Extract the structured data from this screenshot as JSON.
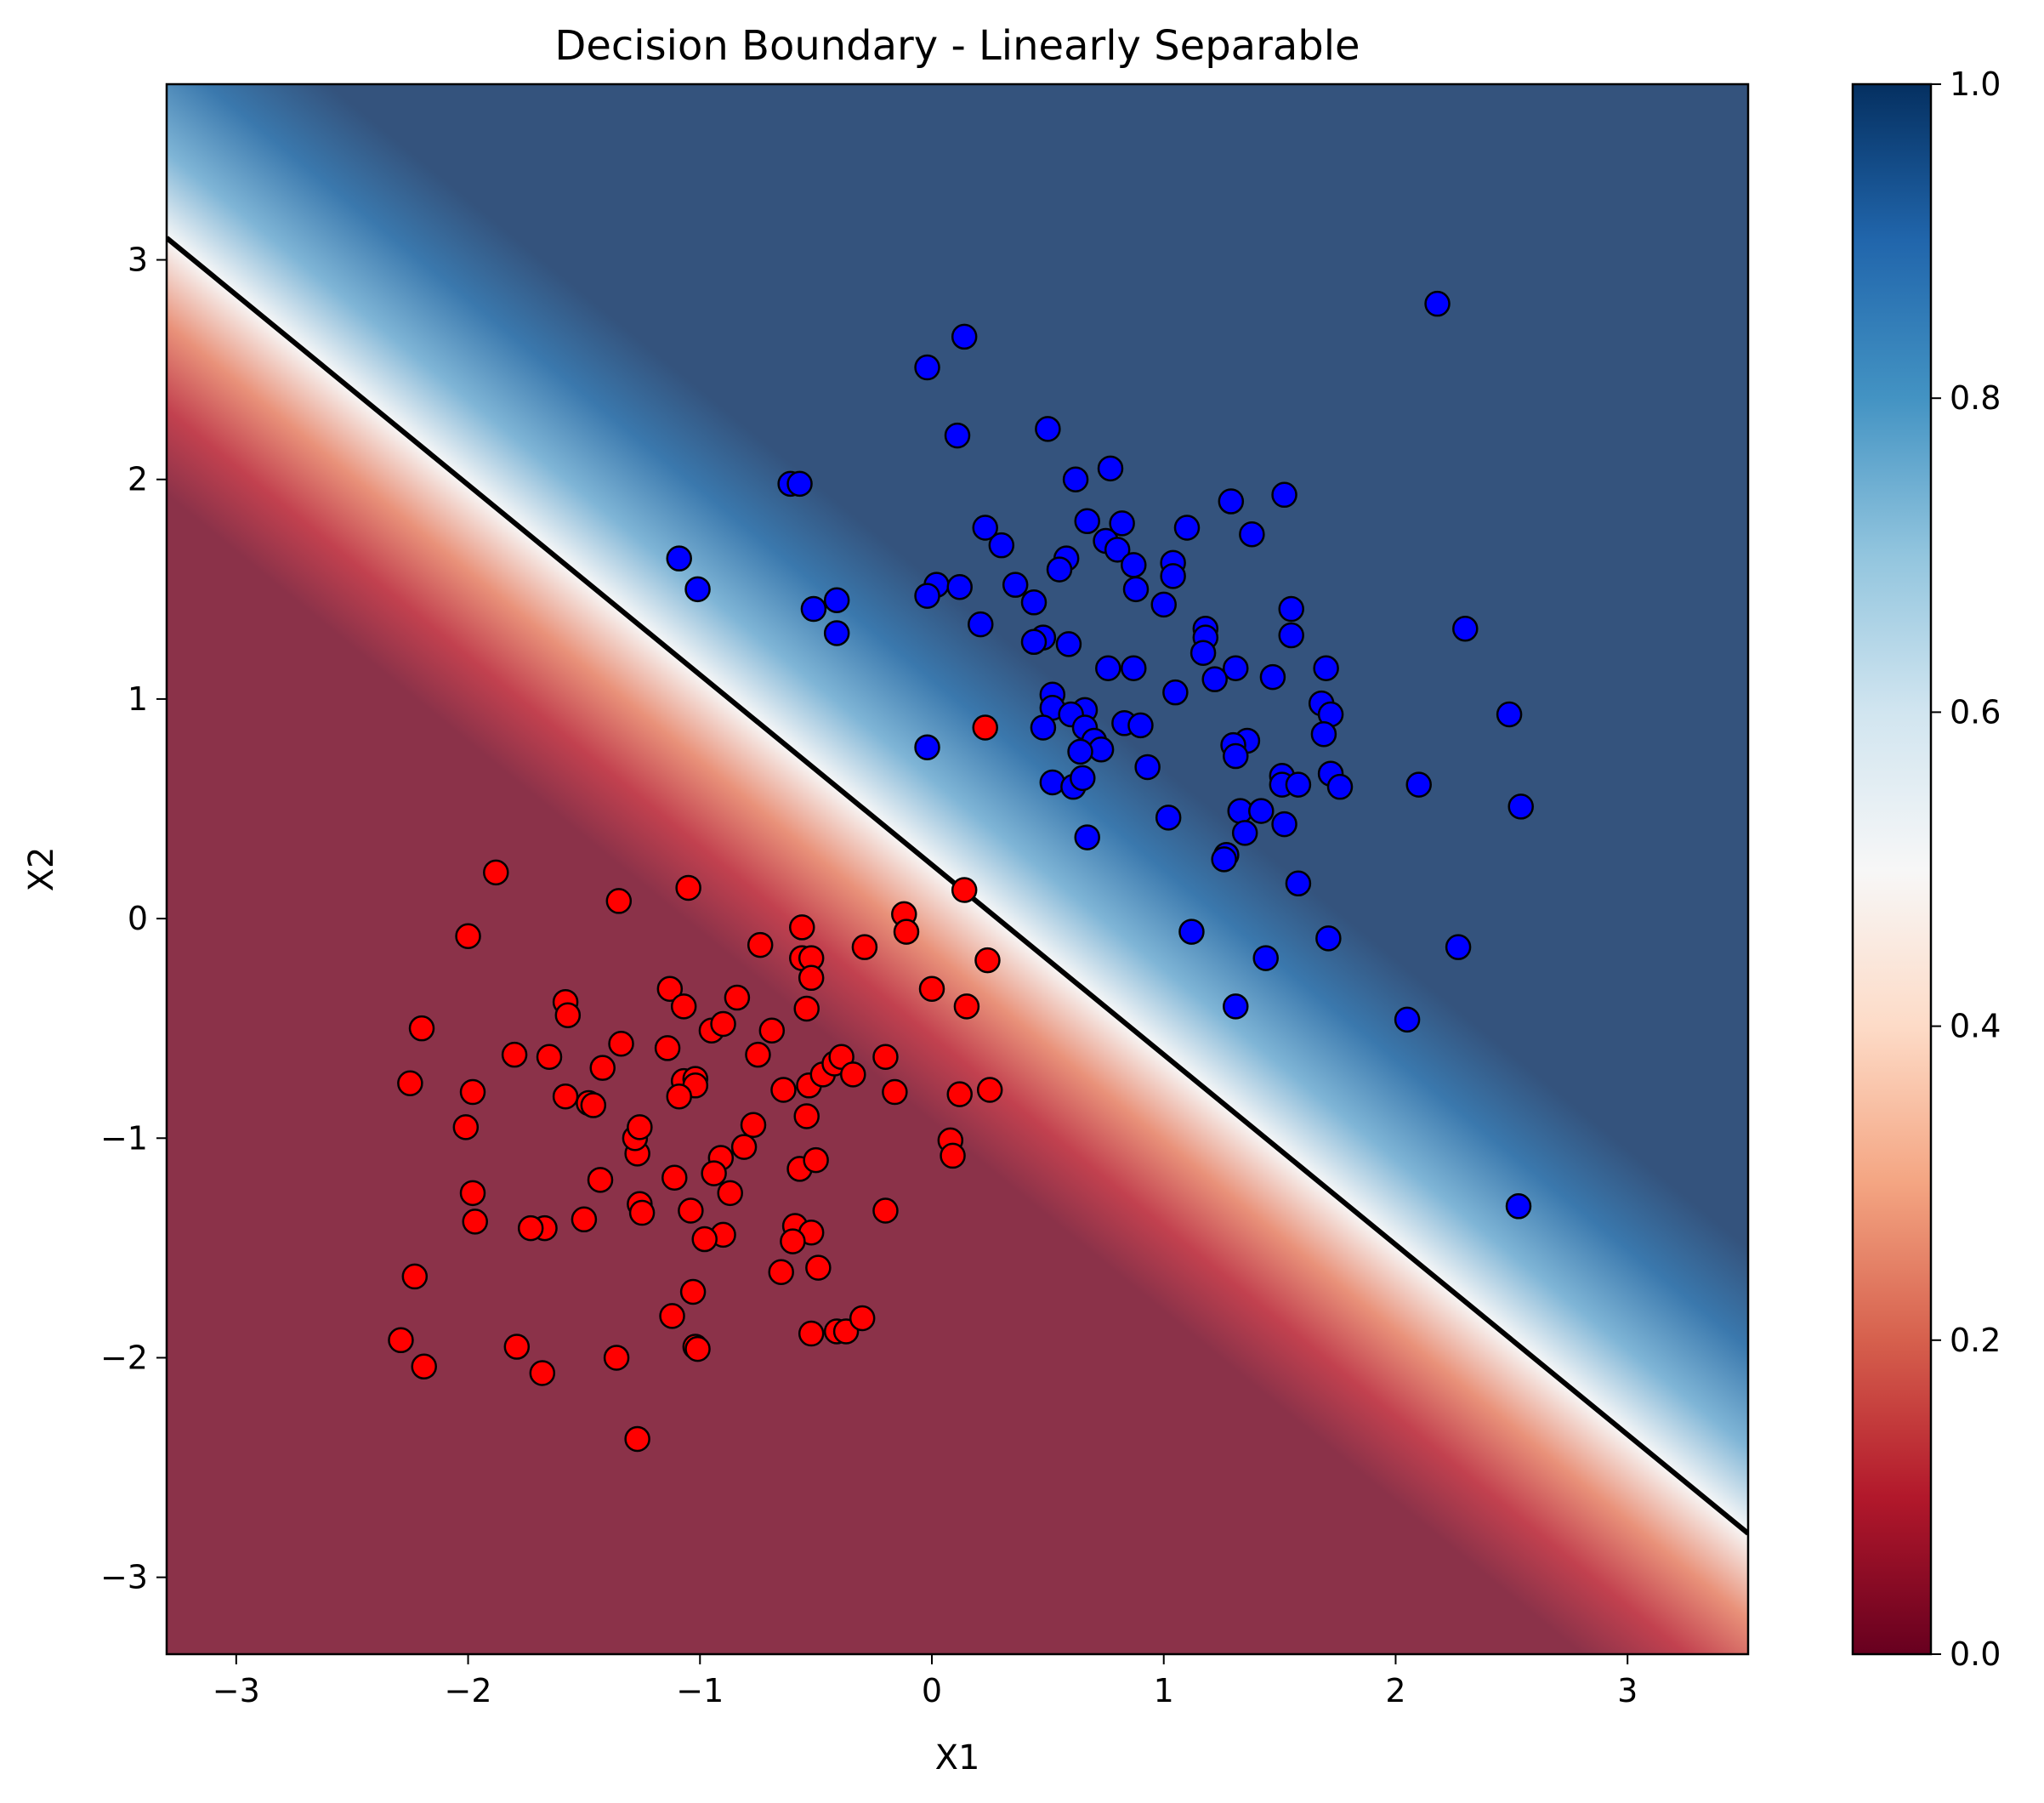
{
  "chart_data": {
    "type": "scatter",
    "title": "Decision Boundary - Linearly Separable",
    "xlabel": "X1",
    "ylabel": "X2",
    "xlim": [
      -3.3,
      3.52
    ],
    "ylim": [
      -3.35,
      3.8
    ],
    "x_ticks": [
      -3,
      -2,
      -1,
      0,
      1,
      2,
      3
    ],
    "y_ticks": [
      -3,
      -2,
      -1,
      0,
      1,
      2,
      3
    ],
    "x_tick_labels": [
      "−3",
      "−2",
      "−1",
      "0",
      "1",
      "2",
      "3"
    ],
    "y_tick_labels": [
      "−3",
      "−2",
      "−1",
      "0",
      "1",
      "2",
      "3"
    ],
    "grid": false,
    "background": {
      "kind": "probability contour",
      "colormap": "RdBu",
      "low_color": "#67001f",
      "mid_color": "#f7f7f7",
      "high_color": "#053061"
    },
    "decision_boundary": {
      "color": "#000000",
      "points": [
        [
          -3.3,
          3.1
        ],
        [
          3.52,
          -2.8
        ]
      ]
    },
    "colorbar": {
      "range": [
        0.0,
        1.0
      ],
      "ticks": [
        0.0,
        0.2,
        0.4,
        0.6,
        0.8,
        1.0
      ],
      "tick_labels": [
        "0.0",
        "0.2",
        "0.4",
        "0.6",
        "0.8",
        "1.0"
      ]
    },
    "series": [
      {
        "color": "#ff0000",
        "points": [
          [
            -1.88,
            0.21
          ],
          [
            -1.35,
            0.08
          ],
          [
            -1.05,
            0.14
          ],
          [
            -2.0,
            -0.08
          ],
          [
            -2.2,
            -0.5
          ],
          [
            -2.25,
            -0.75
          ],
          [
            -1.98,
            -0.79
          ],
          [
            -1.8,
            -0.62
          ],
          [
            -1.65,
            -0.63
          ],
          [
            -1.58,
            -0.38
          ],
          [
            -1.57,
            -0.44
          ],
          [
            -1.58,
            -0.81
          ],
          [
            -1.48,
            -0.84
          ],
          [
            -1.46,
            -0.85
          ],
          [
            -1.42,
            -0.68
          ],
          [
            -1.34,
            -0.57
          ],
          [
            -1.14,
            -0.59
          ],
          [
            -1.13,
            -0.32
          ],
          [
            -1.07,
            -0.4
          ],
          [
            -1.07,
            -0.74
          ],
          [
            -1.02,
            -0.73
          ],
          [
            -1.02,
            -0.76
          ],
          [
            -1.09,
            -0.81
          ],
          [
            -0.95,
            -0.51
          ],
          [
            -0.9,
            -0.48
          ],
          [
            -0.84,
            -0.36
          ],
          [
            -0.77,
            -0.94
          ],
          [
            -0.75,
            -0.62
          ],
          [
            -0.74,
            -0.12
          ],
          [
            -0.69,
            -0.51
          ],
          [
            -0.64,
            -0.78
          ],
          [
            -0.56,
            -0.04
          ],
          [
            -0.56,
            -0.18
          ],
          [
            -0.52,
            -0.18
          ],
          [
            -0.52,
            -0.27
          ],
          [
            -0.54,
            -0.41
          ],
          [
            -0.53,
            -0.76
          ],
          [
            -0.47,
            -0.71
          ],
          [
            -0.42,
            -0.66
          ],
          [
            -0.39,
            -0.63
          ],
          [
            -0.34,
            -0.71
          ],
          [
            -0.29,
            -0.13
          ],
          [
            -0.2,
            -0.63
          ],
          [
            -0.16,
            -0.79
          ],
          [
            -0.12,
            0.02
          ],
          [
            -0.11,
            -0.06
          ],
          [
            0.0,
            -0.32
          ],
          [
            0.15,
            -0.4
          ],
          [
            0.14,
            0.13
          ],
          [
            0.24,
            -0.19
          ],
          [
            0.25,
            -0.78
          ],
          [
            0.12,
            -0.8
          ],
          [
            0.23,
            0.87
          ],
          [
            0.08,
            -1.01
          ],
          [
            0.09,
            -1.08
          ],
          [
            -0.54,
            -0.9
          ],
          [
            -0.57,
            -1.14
          ],
          [
            -0.5,
            -1.1
          ],
          [
            -0.59,
            -1.4
          ],
          [
            -0.52,
            -1.43
          ],
          [
            -0.6,
            -1.47
          ],
          [
            -0.65,
            -1.61
          ],
          [
            -0.49,
            -1.59
          ],
          [
            -0.52,
            -1.89
          ],
          [
            -0.41,
            -1.88
          ],
          [
            -0.37,
            -1.88
          ],
          [
            -0.3,
            -1.82
          ],
          [
            -0.2,
            -1.33
          ],
          [
            -0.81,
            -1.04
          ],
          [
            -0.87,
            -1.25
          ],
          [
            -0.91,
            -1.09
          ],
          [
            -0.94,
            -1.16
          ],
          [
            -0.9,
            -1.44
          ],
          [
            -0.98,
            -1.46
          ],
          [
            -1.04,
            -1.33
          ],
          [
            -1.03,
            -1.7
          ],
          [
            -1.02,
            -1.95
          ],
          [
            -1.01,
            -1.96
          ],
          [
            -1.12,
            -1.81
          ],
          [
            -1.11,
            -1.18
          ],
          [
            -1.26,
            -1.3
          ],
          [
            -1.25,
            -1.34
          ],
          [
            -1.27,
            -1.07
          ],
          [
            -1.28,
            -1.0
          ],
          [
            -1.26,
            -0.95
          ],
          [
            -1.43,
            -1.19
          ],
          [
            -1.5,
            -1.37
          ],
          [
            -1.67,
            -1.41
          ],
          [
            -1.73,
            -1.41
          ],
          [
            -1.98,
            -1.25
          ],
          [
            -1.97,
            -1.38
          ],
          [
            -2.01,
            -0.95
          ],
          [
            -1.79,
            -1.95
          ],
          [
            -1.68,
            -2.07
          ],
          [
            -1.36,
            -2.0
          ],
          [
            -2.29,
            -1.92
          ],
          [
            -2.19,
            -2.04
          ],
          [
            -2.23,
            -1.63
          ],
          [
            -1.27,
            -2.37
          ]
        ]
      },
      {
        "color": "#0000ff",
        "points": [
          [
            2.18,
            2.8
          ],
          [
            0.14,
            2.65
          ],
          [
            -0.02,
            2.51
          ],
          [
            0.5,
            2.23
          ],
          [
            0.11,
            2.2
          ],
          [
            -0.61,
            1.98
          ],
          [
            -0.57,
            1.98
          ],
          [
            0.62,
            2.0
          ],
          [
            0.77,
            2.05
          ],
          [
            1.52,
            1.93
          ],
          [
            1.29,
            1.9
          ],
          [
            0.23,
            1.78
          ],
          [
            0.67,
            1.81
          ],
          [
            0.82,
            1.8
          ],
          [
            1.1,
            1.78
          ],
          [
            1.38,
            1.75
          ],
          [
            0.3,
            1.7
          ],
          [
            0.75,
            1.72
          ],
          [
            0.8,
            1.68
          ],
          [
            -1.09,
            1.64
          ],
          [
            -1.01,
            1.5
          ],
          [
            0.58,
            1.64
          ],
          [
            0.87,
            1.61
          ],
          [
            1.04,
            1.62
          ],
          [
            0.55,
            1.59
          ],
          [
            1.04,
            1.56
          ],
          [
            0.02,
            1.52
          ],
          [
            0.12,
            1.51
          ],
          [
            0.36,
            1.52
          ],
          [
            0.88,
            1.5
          ],
          [
            -0.02,
            1.47
          ],
          [
            -0.41,
            1.45
          ],
          [
            0.44,
            1.44
          ],
          [
            1.0,
            1.43
          ],
          [
            -0.51,
            1.41
          ],
          [
            1.55,
            1.41
          ],
          [
            0.21,
            1.34
          ],
          [
            1.18,
            1.32
          ],
          [
            2.3,
            1.32
          ],
          [
            -0.41,
            1.3
          ],
          [
            1.18,
            1.28
          ],
          [
            1.55,
            1.29
          ],
          [
            0.48,
            1.28
          ],
          [
            0.44,
            1.26
          ],
          [
            0.59,
            1.25
          ],
          [
            1.17,
            1.21
          ],
          [
            0.76,
            1.14
          ],
          [
            0.87,
            1.14
          ],
          [
            1.31,
            1.14
          ],
          [
            1.7,
            1.14
          ],
          [
            1.47,
            1.1
          ],
          [
            1.22,
            1.09
          ],
          [
            0.52,
            1.02
          ],
          [
            1.05,
            1.03
          ],
          [
            1.68,
            0.98
          ],
          [
            0.52,
            0.96
          ],
          [
            0.66,
            0.95
          ],
          [
            0.6,
            0.93
          ],
          [
            1.72,
            0.93
          ],
          [
            2.49,
            0.93
          ],
          [
            0.83,
            0.89
          ],
          [
            0.66,
            0.87
          ],
          [
            0.9,
            0.88
          ],
          [
            0.48,
            0.87
          ],
          [
            1.69,
            0.84
          ],
          [
            0.7,
            0.81
          ],
          [
            1.36,
            0.81
          ],
          [
            1.3,
            0.79
          ],
          [
            -0.02,
            0.78
          ],
          [
            0.73,
            0.77
          ],
          [
            0.64,
            0.76
          ],
          [
            1.31,
            0.74
          ],
          [
            0.93,
            0.69
          ],
          [
            1.51,
            0.65
          ],
          [
            1.72,
            0.66
          ],
          [
            0.52,
            0.62
          ],
          [
            0.61,
            0.6
          ],
          [
            0.65,
            0.64
          ],
          [
            1.51,
            0.61
          ],
          [
            1.58,
            0.61
          ],
          [
            1.76,
            0.6
          ],
          [
            2.1,
            0.61
          ],
          [
            2.54,
            0.51
          ],
          [
            1.33,
            0.49
          ],
          [
            1.42,
            0.49
          ],
          [
            1.02,
            0.46
          ],
          [
            1.52,
            0.43
          ],
          [
            1.35,
            0.39
          ],
          [
            0.67,
            0.37
          ],
          [
            1.27,
            0.29
          ],
          [
            1.26,
            0.27
          ],
          [
            1.58,
            0.16
          ],
          [
            1.12,
            -0.06
          ],
          [
            1.71,
            -0.09
          ],
          [
            2.27,
            -0.13
          ],
          [
            1.44,
            -0.18
          ],
          [
            1.31,
            -0.4
          ],
          [
            2.05,
            -0.46
          ],
          [
            2.53,
            -1.31
          ]
        ]
      }
    ]
  }
}
